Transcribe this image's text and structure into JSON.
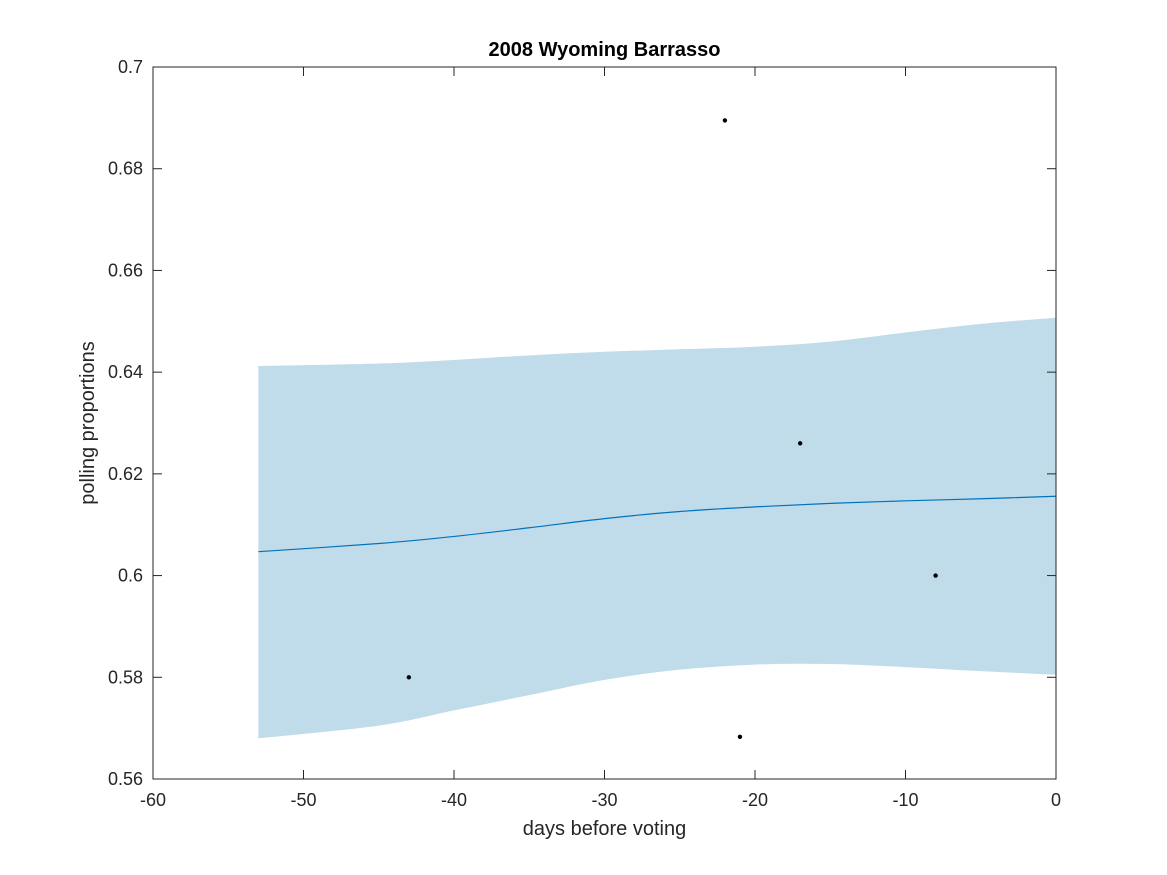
{
  "chart_data": {
    "type": "line",
    "title": "2008 Wyoming Barrasso",
    "xlabel": "days before voting",
    "ylabel": "polling proportions",
    "xlim": [
      -60,
      0
    ],
    "ylim": [
      0.56,
      0.7
    ],
    "xticks": [
      -60,
      -50,
      -40,
      -30,
      -20,
      -10,
      0
    ],
    "yticks": [
      0.56,
      0.58,
      0.6,
      0.62,
      0.64,
      0.66,
      0.68,
      0.7
    ],
    "xtick_labels": [
      "-60",
      "-50",
      "-40",
      "-30",
      "-20",
      "-10",
      "0"
    ],
    "ytick_labels": [
      "0.56",
      "0.58",
      "0.6",
      "0.62",
      "0.64",
      "0.66",
      "0.68",
      "0.7"
    ],
    "grid": false,
    "colors": {
      "band": "#c0dcea",
      "line": "#0072bd",
      "points": "#000000",
      "axes": "#262626"
    },
    "fit": {
      "x": [
        -53,
        -45,
        -40,
        -35,
        -30,
        -25,
        -20,
        -15,
        -10,
        -5,
        0
      ],
      "y": [
        0.6047,
        0.6063,
        0.6077,
        0.6094,
        0.6112,
        0.6126,
        0.6135,
        0.6142,
        0.6147,
        0.6151,
        0.6156
      ],
      "lower": [
        0.568,
        0.5705,
        0.5735,
        0.5765,
        0.5795,
        0.5815,
        0.5825,
        0.5826,
        0.582,
        0.5812,
        0.5805
      ],
      "upper": [
        0.6412,
        0.6417,
        0.6424,
        0.6433,
        0.644,
        0.6445,
        0.645,
        0.646,
        0.6478,
        0.6495,
        0.6507
      ]
    },
    "points": {
      "x": [
        -43,
        -22,
        -21,
        -17,
        -8
      ],
      "y": [
        0.58,
        0.6895,
        0.5683,
        0.626,
        0.6
      ]
    }
  }
}
